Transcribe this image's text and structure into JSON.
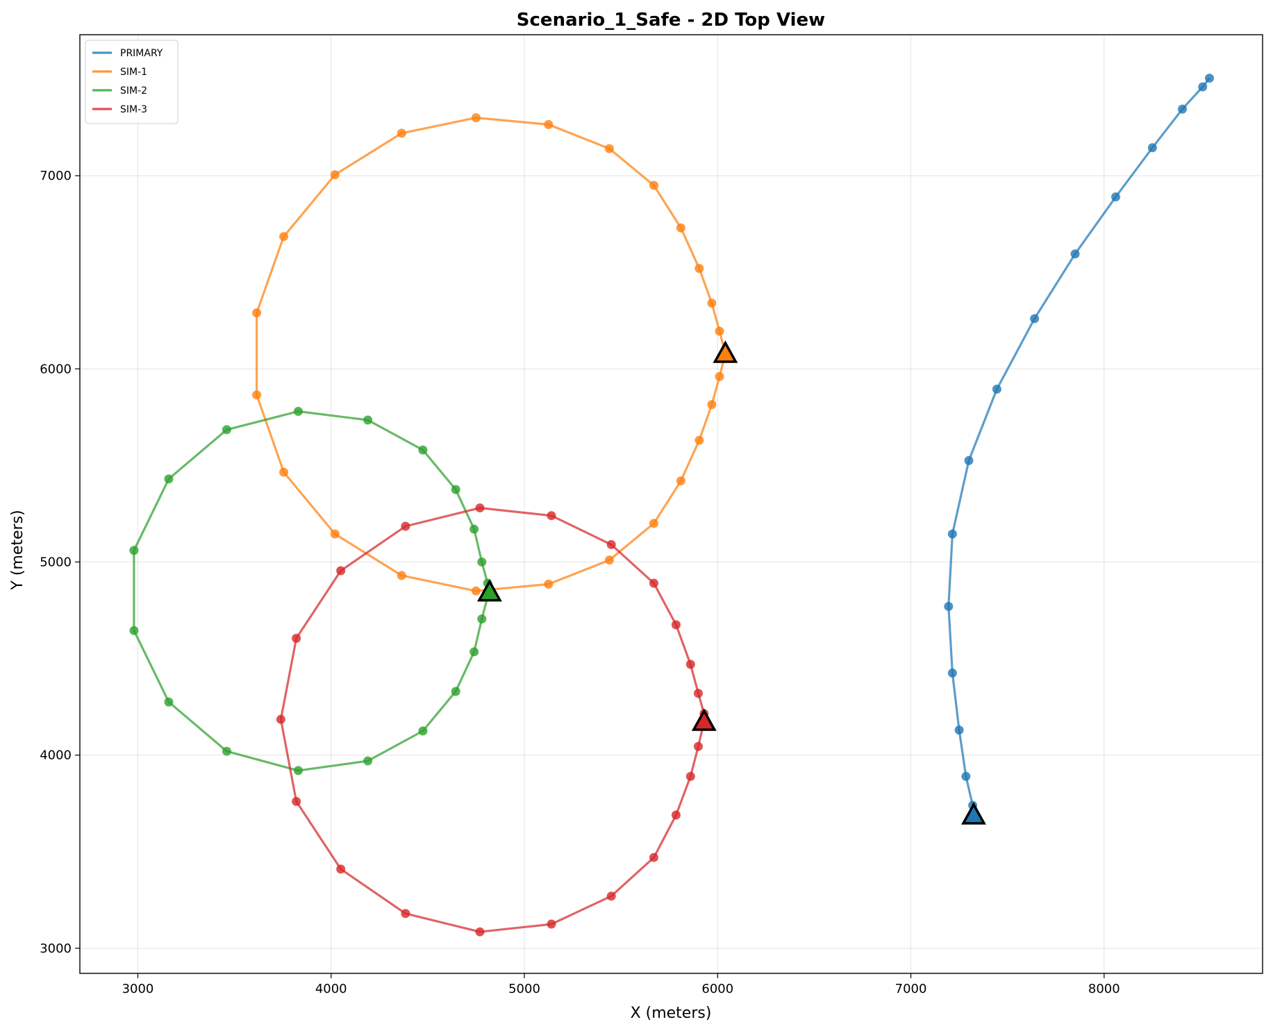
{
  "chart_data": {
    "type": "line",
    "title": "Scenario_1_Safe - 2D Top View",
    "xlabel": "X (meters)",
    "ylabel": "Y (meters)",
    "xlim": [
      2700,
      8820
    ],
    "ylim": [
      2870,
      7730
    ],
    "xticks": [
      3000,
      4000,
      5000,
      6000,
      7000,
      8000
    ],
    "yticks": [
      3000,
      4000,
      5000,
      6000,
      7000
    ],
    "grid": true,
    "legend_position": "top-left",
    "series": [
      {
        "name": "PRIMARY",
        "color": "#1f77b4",
        "points": [
          [
            7320,
            3740
          ],
          [
            7285,
            3890
          ],
          [
            7250,
            4130
          ],
          [
            7215,
            4425
          ],
          [
            7195,
            4770
          ],
          [
            7215,
            5145
          ],
          [
            7300,
            5525
          ],
          [
            7445,
            5895
          ],
          [
            7640,
            6260
          ],
          [
            7850,
            6595
          ],
          [
            8060,
            6890
          ],
          [
            8250,
            7145
          ],
          [
            8405,
            7345
          ],
          [
            8510,
            7460
          ],
          [
            8545,
            7505
          ]
        ],
        "end_marker": [
          7325,
          3690
        ]
      },
      {
        "name": "SIM-1",
        "color": "#ff7f0e",
        "points": [
          [
            6040,
            6080
          ],
          [
            6010,
            6195
          ],
          [
            5970,
            6340
          ],
          [
            5905,
            6520
          ],
          [
            5810,
            6730
          ],
          [
            5670,
            6950
          ],
          [
            5440,
            7140
          ],
          [
            5125,
            7265
          ],
          [
            4750,
            7300
          ],
          [
            4365,
            7220
          ],
          [
            4020,
            7005
          ],
          [
            3755,
            6685
          ],
          [
            3615,
            6290
          ],
          [
            3615,
            5865
          ],
          [
            3755,
            5465
          ],
          [
            4020,
            5145
          ],
          [
            4365,
            4930
          ],
          [
            4750,
            4850
          ],
          [
            5125,
            4885
          ],
          [
            5440,
            5010
          ],
          [
            5670,
            5200
          ],
          [
            5810,
            5420
          ],
          [
            5905,
            5630
          ],
          [
            5970,
            5815
          ],
          [
            6010,
            5960
          ],
          [
            6040,
            6080
          ]
        ],
        "end_marker": [
          6040,
          6080
        ]
      },
      {
        "name": "SIM-2",
        "color": "#2ca02c",
        "points": [
          [
            4810,
            4890
          ],
          [
            4780,
            5000
          ],
          [
            4740,
            5170
          ],
          [
            4645,
            5375
          ],
          [
            4475,
            5580
          ],
          [
            4190,
            5735
          ],
          [
            3830,
            5780
          ],
          [
            3460,
            5685
          ],
          [
            3160,
            5430
          ],
          [
            2980,
            5060
          ],
          [
            2980,
            4645
          ],
          [
            3160,
            4275
          ],
          [
            3460,
            4020
          ],
          [
            3830,
            3920
          ],
          [
            4190,
            3970
          ],
          [
            4475,
            4125
          ],
          [
            4645,
            4330
          ],
          [
            4740,
            4535
          ],
          [
            4780,
            4705
          ],
          [
            4810,
            4820
          ]
        ],
        "end_marker": [
          4820,
          4845
        ]
      },
      {
        "name": "SIM-3",
        "color": "#d62728",
        "points": [
          [
            5930,
            4215
          ],
          [
            5900,
            4320
          ],
          [
            5860,
            4470
          ],
          [
            5785,
            4675
          ],
          [
            5670,
            4890
          ],
          [
            5450,
            5090
          ],
          [
            5140,
            5240
          ],
          [
            4770,
            5280
          ],
          [
            4385,
            5185
          ],
          [
            4050,
            4955
          ],
          [
            3820,
            4605
          ],
          [
            3740,
            4185
          ],
          [
            3820,
            3760
          ],
          [
            4050,
            3410
          ],
          [
            4385,
            3180
          ],
          [
            4770,
            3085
          ],
          [
            5140,
            3125
          ],
          [
            5450,
            3270
          ],
          [
            5670,
            3470
          ],
          [
            5785,
            3690
          ],
          [
            5860,
            3890
          ],
          [
            5900,
            4045
          ],
          [
            5930,
            4175
          ]
        ],
        "end_marker": [
          5930,
          4175
        ]
      }
    ]
  }
}
